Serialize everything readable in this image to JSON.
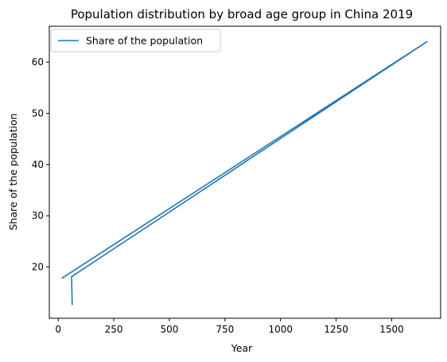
{
  "chart_data": {
    "type": "line",
    "title": "Population distribution by broad age group in China 2019",
    "xlabel": "Year",
    "ylabel": "Share of the population",
    "xlim": [
      -40,
      1720
    ],
    "ylim": [
      10,
      67
    ],
    "xticks": [
      0,
      250,
      500,
      750,
      1000,
      1250,
      1500
    ],
    "yticks": [
      20,
      30,
      40,
      50,
      60
    ],
    "grid": false,
    "legend": {
      "placement": "top-left"
    },
    "series": [
      {
        "name": "Share of the population",
        "color": "#1f77b4",
        "x": [
          63,
          60,
          1659,
          16
        ],
        "y": [
          12.6,
          18.1,
          64.0,
          17.8
        ]
      }
    ]
  }
}
